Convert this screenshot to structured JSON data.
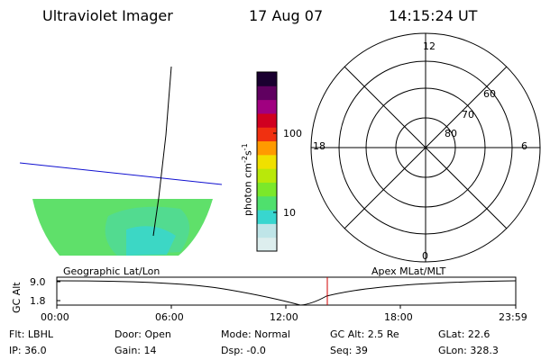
{
  "header": {
    "instrument": "Ultraviolet Imager",
    "date": "17 Aug 07",
    "time": "14:15:24 UT"
  },
  "colorbar": {
    "unit_label": "photon cm",
    "unit_exp1": "-2",
    "unit_mid": "s",
    "unit_exp2": "-1",
    "tick_labels": [
      "100",
      "10"
    ],
    "scale": "log",
    "colors": [
      "#ddeeee",
      "#bfe5e8",
      "#38d6cf",
      "#4fe06d",
      "#7be82a",
      "#b9e80a",
      "#f0e000",
      "#ff9a00",
      "#f03010",
      "#d00020",
      "#a00080",
      "#600060",
      "#1a0030"
    ]
  },
  "polar_plot": {
    "mlt_labels": [
      "12",
      "18",
      "6",
      "0"
    ],
    "mlat_labels": [
      "60",
      "70",
      "80"
    ]
  },
  "map": {
    "label_left": "Geographic Lat/Lon",
    "label_right": "Apex MLat/MLT",
    "fill_color": "#5fe06a",
    "fill_color_alt": "#38d6cf"
  },
  "altitude_chart": {
    "ylabel": "GC Alt",
    "y_ticks": [
      "9.0",
      "1.8"
    ],
    "x_ticks": [
      "00:00",
      "06:00",
      "12:00",
      "18:00",
      "23:59"
    ],
    "current_time_marker": "14:15",
    "marker_color": "#d00000"
  },
  "info": {
    "flt": "Flt: LBHL",
    "ip": "IP: 36.0",
    "door": "Door: Open",
    "gain": "Gain: 14",
    "mode": "Mode: Normal",
    "dsp": "Dsp:   -0.0",
    "gc_alt": "GC Alt: 2.5 Re",
    "seq": "Seq: 39",
    "glat": "GLat:  22.6",
    "glon": "GLon: 328.3"
  }
}
